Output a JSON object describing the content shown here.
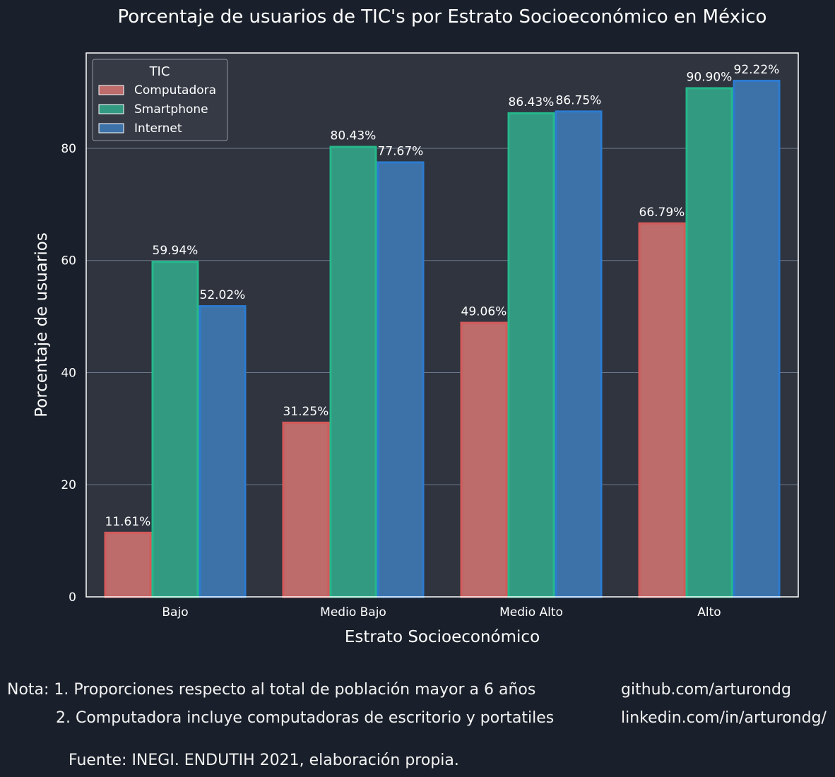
{
  "chart_data": {
    "type": "bar",
    "title": "Porcentaje de usuarios de TIC's por Estrato Socioeconómico en México",
    "xlabel": "Estrato Socioeconómico",
    "ylabel": "Porcentaje de usuarios",
    "categories": [
      "Bajo",
      "Medio Bajo",
      "Medio Alto",
      "Alto"
    ],
    "ylim": [
      0,
      97
    ],
    "yticks": [
      0,
      20,
      40,
      60,
      80
    ],
    "grid": true,
    "legend": {
      "title": "TIC",
      "position": "top-left"
    },
    "series": [
      {
        "name": "Computadora",
        "values": [
          11.61,
          31.25,
          49.06,
          66.79
        ],
        "labels": [
          "11.61%",
          "31.25%",
          "49.06%",
          "66.79%"
        ],
        "color": "#bd6b6b",
        "edge": "#d45a5a"
      },
      {
        "name": "Smartphone",
        "values": [
          59.94,
          80.43,
          86.43,
          90.9
        ],
        "labels": [
          "59.94%",
          "80.43%",
          "86.43%",
          "90.90%"
        ],
        "color": "#339a82",
        "edge": "#26b88a"
      },
      {
        "name": "Internet",
        "values": [
          52.02,
          77.67,
          86.75,
          92.22
        ],
        "labels": [
          "52.02%",
          "77.67%",
          "86.75%",
          "92.22%"
        ],
        "color": "#3d72a8",
        "edge": "#2c7bd0"
      }
    ]
  },
  "footer": {
    "note_line1": "Nota: 1. Proporciones respecto al total de población mayor a 6 años",
    "note_line2": "2. Computadora incluye computadoras de escritorio y portatiles",
    "github": "github.com/arturondg",
    "linkedin": "linkedin.com/in/arturondg/",
    "source": "Fuente: INEGI. ENDUTIH 2021, elaboración propia."
  },
  "colors": {
    "background": "#1a202b",
    "plot_background": "#2f343f",
    "grid": "#6c7b91",
    "text": "#ffffff"
  }
}
